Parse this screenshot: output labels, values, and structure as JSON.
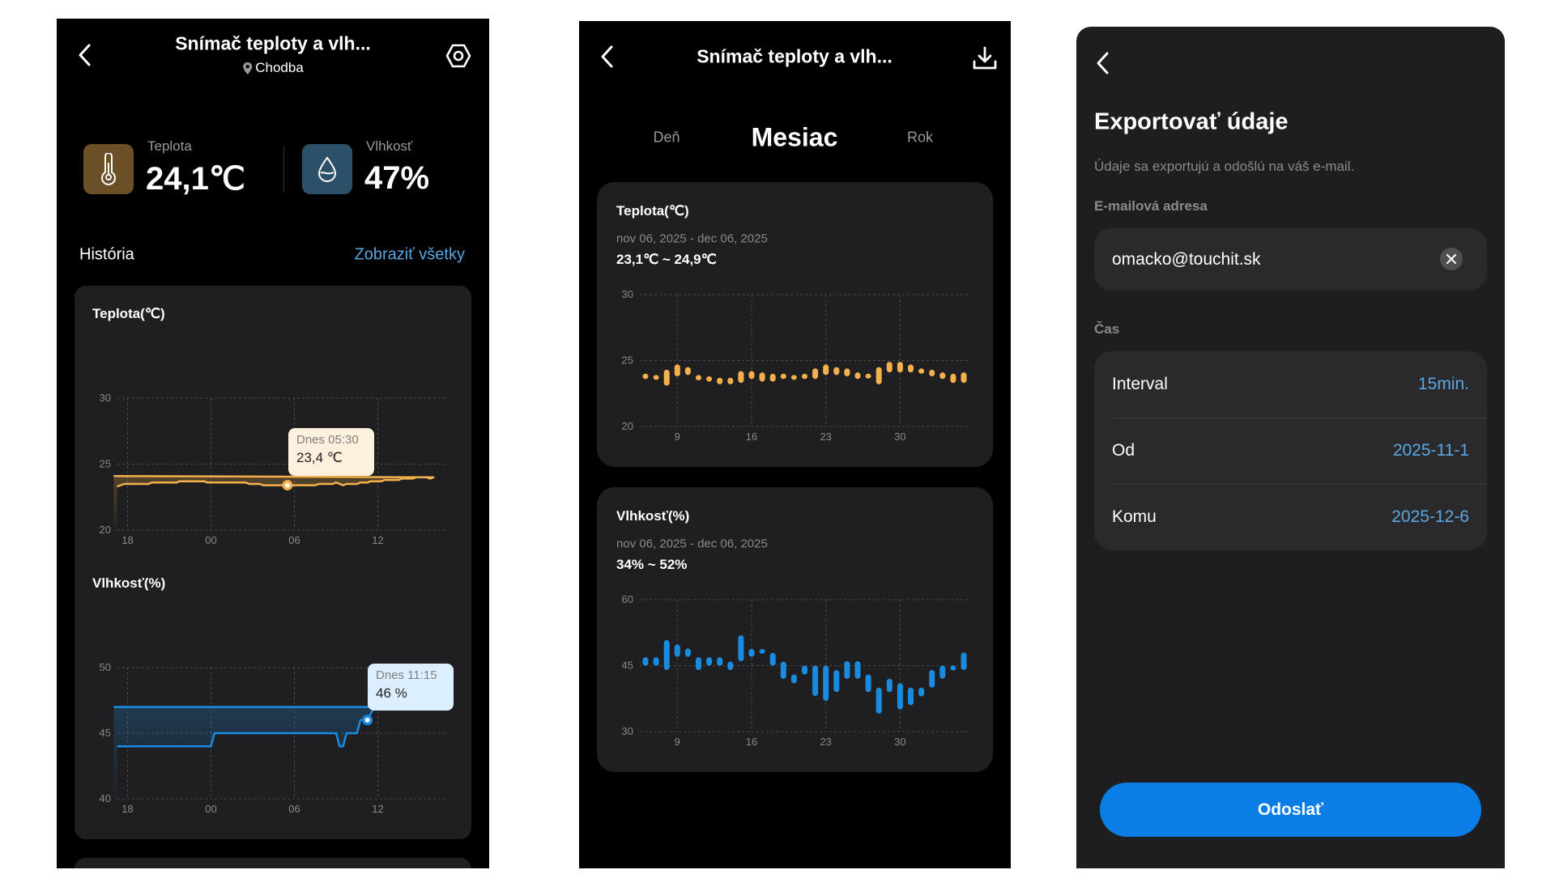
{
  "colors": {
    "temperature": "#f4b04a",
    "humidity": "#1a8ce0",
    "link": "#5aa7e0",
    "button": "#0a7ee6",
    "temp_icon_bg": "#6b4f26",
    "hum_icon_bg": "#2c5067"
  },
  "screen1": {
    "title": "Snímač teploty a vlh...",
    "location": "Chodba",
    "location_icon": "map-pin-icon",
    "settings_icon": "settings-icon",
    "temperature": {
      "label": "Teplota",
      "value": "24,1℃",
      "icon": "thermometer-icon"
    },
    "humidity": {
      "label": "Vlhkosť",
      "value": "47%",
      "icon": "water-drop-icon"
    },
    "history_label": "História",
    "show_all": "Zobraziť všetky",
    "temp_chart_title": "Teplota(℃)",
    "hum_chart_title": "Vlhkosť(%)",
    "temp_tooltip": {
      "time": "Dnes 05:30",
      "value": "23,4 ℃"
    },
    "hum_tooltip": {
      "time": "Dnes 11:15",
      "value": "46 %"
    }
  },
  "screen2": {
    "title": "Snímač teploty a vlh...",
    "download_icon": "download-icon",
    "tabs": [
      {
        "label": "Deň",
        "active": false
      },
      {
        "label": "Mesiac",
        "active": true
      },
      {
        "label": "Rok",
        "active": false
      }
    ],
    "temp_card": {
      "title": "Teplota(℃)",
      "range_dates": "nov 06, 2025 - dec 06, 2025",
      "range_values": "23,1℃ ~ 24,9℃"
    },
    "hum_card": {
      "title": "Vlhkosť(%)",
      "range_dates": "nov 06, 2025 - dec 06, 2025",
      "range_values": "34% ~ 52%"
    }
  },
  "screen3": {
    "title": "Exportovať údaje",
    "subtitle": "Údaje sa exportujú a odošlú na váš e-mail.",
    "email_label": "E-mailová adresa",
    "email_value": "omacko@touchit.sk",
    "time_label": "Čas",
    "rows": [
      {
        "label": "Interval",
        "value": "15min."
      },
      {
        "label": "Od",
        "value": "2025-11-1"
      },
      {
        "label": "Komu",
        "value": "2025-12-6"
      }
    ],
    "submit": "Odoslať"
  },
  "chart_data": [
    {
      "id": "day-temp",
      "type": "area",
      "ylim": [
        20,
        30
      ],
      "yticks": [
        "30",
        "25",
        "20"
      ],
      "xticks": [
        "18",
        "00",
        "06",
        "12"
      ],
      "grid": true,
      "highlight": {
        "time": "05:30",
        "value": 23.4
      },
      "points": [
        [
          "17:15",
          23.3
        ],
        [
          "17:45",
          23.5
        ],
        [
          "19:30",
          23.5
        ],
        [
          "19:45",
          23.6
        ],
        [
          "21:30",
          23.6
        ],
        [
          "21:45",
          23.7
        ],
        [
          "23:30",
          23.7
        ],
        [
          "23:45",
          23.6
        ],
        [
          "02:30",
          23.6
        ],
        [
          "02:45",
          23.5
        ],
        [
          "03:30",
          23.5
        ],
        [
          "03:45",
          23.4
        ],
        [
          "05:30",
          23.4
        ],
        [
          "07:30",
          23.4
        ],
        [
          "07:45",
          23.5
        ],
        [
          "08:45",
          23.5
        ],
        [
          "09:00",
          23.6
        ],
        [
          "09:30",
          23.4
        ],
        [
          "09:45",
          23.5
        ],
        [
          "10:30",
          23.5
        ],
        [
          "10:45",
          23.6
        ],
        [
          "11:15",
          23.6
        ],
        [
          "11:30",
          23.7
        ],
        [
          "12:15",
          23.7
        ],
        [
          "12:30",
          23.8
        ],
        [
          "13:30",
          23.8
        ],
        [
          "13:45",
          23.9
        ],
        [
          "14:30",
          23.9
        ],
        [
          "14:45",
          24.0
        ],
        [
          "15:30",
          24.0
        ],
        [
          "15:45",
          23.9
        ],
        [
          "16:00",
          24.0
        ],
        [
          "17:00",
          24.1
        ]
      ]
    },
    {
      "id": "day-hum",
      "type": "area",
      "ylim": [
        40,
        50
      ],
      "yticks": [
        "50",
        "45",
        "40"
      ],
      "xticks": [
        "18",
        "00",
        "06",
        "12"
      ],
      "grid": true,
      "highlight": {
        "time": "11:15",
        "value": 46
      },
      "points": [
        [
          "17:15",
          44
        ],
        [
          "00:00",
          44
        ],
        [
          "00:15",
          45
        ],
        [
          "09:00",
          45
        ],
        [
          "09:15",
          44
        ],
        [
          "09:30",
          44
        ],
        [
          "09:45",
          45
        ],
        [
          "10:30",
          45
        ],
        [
          "10:45",
          46
        ],
        [
          "11:15",
          46
        ],
        [
          "11:45",
          47
        ],
        [
          "17:00",
          47
        ]
      ]
    },
    {
      "id": "month-temp",
      "type": "range-bar",
      "ylim": [
        20,
        30
      ],
      "yticks": [
        "30",
        "25",
        "20"
      ],
      "xticks": [
        "9",
        "16",
        "23",
        "30"
      ],
      "grid": true,
      "first_day": "nov 06, 2025",
      "ranges": [
        [
          23.6,
          24.0
        ],
        [
          23.6,
          23.9
        ],
        [
          23.1,
          24.3
        ],
        [
          23.8,
          24.7
        ],
        [
          23.9,
          24.5
        ],
        [
          23.5,
          23.9
        ],
        [
          23.4,
          23.8
        ],
        [
          23.2,
          23.7
        ],
        [
          23.2,
          23.7
        ],
        [
          23.3,
          24.2
        ],
        [
          23.6,
          24.2
        ],
        [
          23.4,
          24.1
        ],
        [
          23.4,
          24.0
        ],
        [
          23.6,
          24.0
        ],
        [
          23.6,
          23.9
        ],
        [
          23.6,
          24.0
        ],
        [
          23.6,
          24.4
        ],
        [
          23.9,
          24.7
        ],
        [
          23.9,
          24.5
        ],
        [
          23.8,
          24.4
        ],
        [
          23.6,
          24.1
        ],
        [
          23.7,
          24.0
        ],
        [
          23.2,
          24.5
        ],
        [
          24.1,
          24.9
        ],
        [
          24.1,
          24.9
        ],
        [
          24.1,
          24.7
        ],
        [
          24.0,
          24.4
        ],
        [
          23.8,
          24.3
        ],
        [
          23.6,
          24.1
        ],
        [
          23.3,
          24.0
        ],
        [
          23.3,
          24.1
        ]
      ]
    },
    {
      "id": "month-hum",
      "type": "range-bar",
      "ylim": [
        30,
        60
      ],
      "yticks": [
        "60",
        "45",
        "30"
      ],
      "xticks": [
        "9",
        "16",
        "23",
        "30"
      ],
      "grid": true,
      "first_day": "nov 06, 2025",
      "ranges": [
        [
          45,
          46.9
        ],
        [
          45,
          46.9
        ],
        [
          44,
          50.8
        ],
        [
          47,
          49.8
        ],
        [
          47,
          48.9
        ],
        [
          44,
          46.9
        ],
        [
          45,
          46.9
        ],
        [
          45,
          46.9
        ],
        [
          44,
          45.9
        ],
        [
          46,
          51.9
        ],
        [
          47,
          48.8
        ],
        [
          48,
          48.8
        ],
        [
          45,
          47.9
        ],
        [
          42,
          45.9
        ],
        [
          41,
          43
        ],
        [
          43,
          45
        ],
        [
          38.1,
          45
        ],
        [
          37,
          45
        ],
        [
          39,
          44
        ],
        [
          42,
          46
        ],
        [
          42,
          46
        ],
        [
          39,
          43
        ],
        [
          34.1,
          40
        ],
        [
          39,
          42
        ],
        [
          35,
          41
        ],
        [
          36,
          40
        ],
        [
          38,
          40
        ],
        [
          40,
          44
        ],
        [
          42,
          45
        ],
        [
          44,
          45
        ],
        [
          44,
          48
        ]
      ]
    }
  ]
}
